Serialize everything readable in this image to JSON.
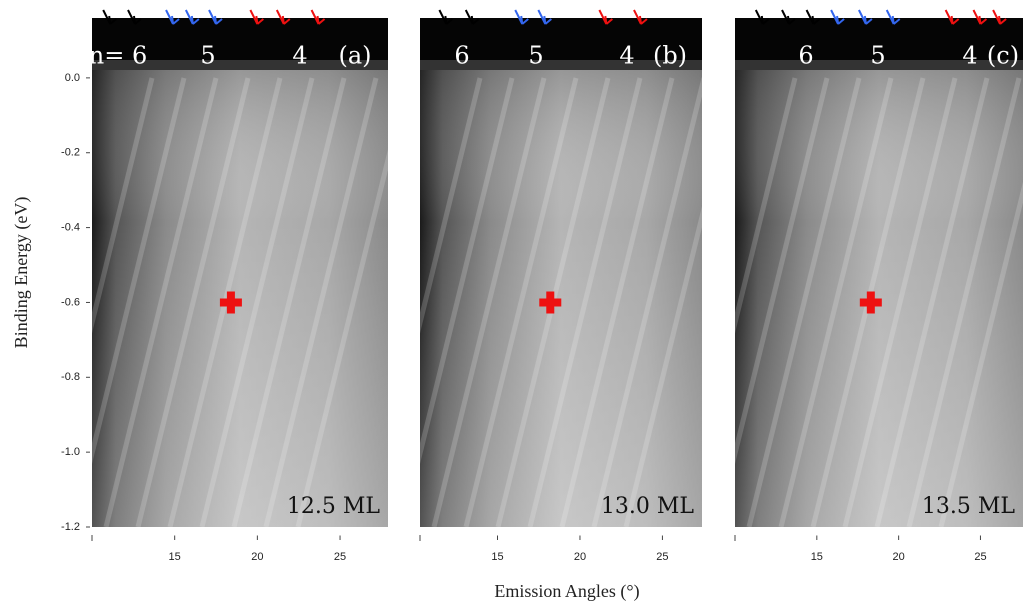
{
  "chart_data": [
    {
      "type": "heatmap",
      "ylabel": "Binding Energy (eV)",
      "xlim": [
        10,
        27.9
      ],
      "xticks": [
        15,
        20,
        25
      ],
      "ylim": [
        -1.2,
        0.16
      ],
      "yticks": [
        {
          "value": 0,
          "label": "0.0"
        },
        -0.2,
        -0.4,
        -0.6,
        -0.8,
        {
          "value": -1,
          "label": "-1.0"
        },
        -1.2
      ],
      "annotations": [
        "n= 6",
        "5",
        "4",
        "(a)"
      ],
      "thickness": "12.5 ML",
      "marker": {
        "x": 18.4,
        "y": -0.6,
        "color": "#ee1111"
      },
      "arrow_groups": [
        {
          "color": "#000000",
          "x": [
            11.1,
            12.6
          ]
        },
        {
          "color": "#3366ee",
          "x": [
            14.9,
            16.1,
            17.5
          ]
        },
        {
          "color": "#ee1111",
          "x": [
            20,
            21.6,
            23.7
          ]
        }
      ]
    },
    {
      "type": "heatmap",
      "xlabel": "Emission Angles (°)",
      "xlim": [
        10.3,
        27.4
      ],
      "xticks": [
        15,
        20,
        25
      ],
      "ylim": [
        -1.2,
        0.16
      ],
      "annotations": [
        "6",
        "5",
        "4",
        "(b)"
      ],
      "thickness": "13.0 ML",
      "marker": {
        "x": 18.2,
        "y": -0.6,
        "color": "#ee1111"
      },
      "arrow_groups": [
        {
          "color": "#000000",
          "x": [
            11.9,
            13.5
          ]
        },
        {
          "color": "#3366ee",
          "x": [
            16.5,
            17.9
          ]
        },
        {
          "color": "#ee1111",
          "x": [
            21.6,
            23.7
          ]
        }
      ]
    },
    {
      "type": "heatmap",
      "xlim": [
        10,
        27.6
      ],
      "xticks": [
        15,
        20,
        25
      ],
      "ylim": [
        -1.2,
        0.16
      ],
      "annotations": [
        "6",
        "5",
        "4",
        "(c)"
      ],
      "thickness": "13.5 ML",
      "marker": {
        "x": 18.3,
        "y": -0.6,
        "color": "#ee1111"
      },
      "arrow_groups": [
        {
          "color": "#000000",
          "x": [
            11.7,
            13.3,
            14.8
          ]
        },
        {
          "color": "#3366ee",
          "x": [
            16.3,
            18,
            19.7
          ]
        },
        {
          "color": "#ee1111",
          "x": [
            23.3,
            25,
            26.2
          ]
        }
      ]
    }
  ]
}
